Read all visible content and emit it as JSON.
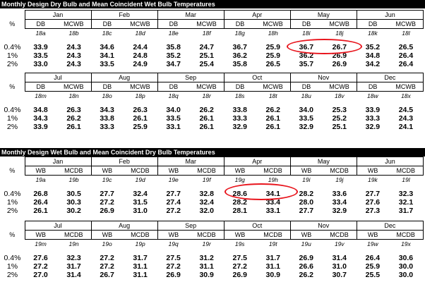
{
  "sections": [
    {
      "title": "Monthly Design Dry Bulb and Mean Coincident Wet Bulb Temperatures",
      "percent_label": "%",
      "col_a": "DB",
      "col_b": "MCWB",
      "halves": [
        {
          "months": [
            "Jan",
            "Feb",
            "Mar",
            "Apr",
            "May",
            "Jun"
          ],
          "codes": [
            "18a",
            "18b",
            "18c",
            "18d",
            "18e",
            "18f",
            "18g",
            "18h",
            "18i",
            "18j",
            "18k",
            "18l"
          ],
          "rows": [
            {
              "pct": "0.4%",
              "v": [
                "33.9",
                "24.3",
                "34.6",
                "24.4",
                "35.8",
                "24.7",
                "36.7",
                "25.9",
                "36.7",
                "26.7",
                "35.2",
                "26.5"
              ]
            },
            {
              "pct": "1%",
              "v": [
                "33.5",
                "24.3",
                "34.1",
                "24.8",
                "35.2",
                "25.1",
                "36.2",
                "25.9",
                "36.2",
                "26.9",
                "34.8",
                "26.4"
              ]
            },
            {
              "pct": "2%",
              "v": [
                "33.0",
                "24.3",
                "33.5",
                "24.9",
                "34.7",
                "25.4",
                "35.8",
                "26.5",
                "35.7",
                "26.9",
                "34.2",
                "26.4"
              ]
            }
          ]
        },
        {
          "months": [
            "Jul",
            "Aug",
            "Sep",
            "Oct",
            "Nov",
            "Dec"
          ],
          "codes": [
            "18m",
            "18n",
            "18o",
            "18p",
            "18q",
            "18r",
            "18s",
            "18t",
            "18u",
            "18v",
            "18w",
            "18x"
          ],
          "rows": [
            {
              "pct": "0.4%",
              "v": [
                "34.8",
                "26.3",
                "34.3",
                "26.3",
                "34.0",
                "26.2",
                "33.8",
                "26.2",
                "34.0",
                "25.3",
                "33.9",
                "24.5"
              ]
            },
            {
              "pct": "1%",
              "v": [
                "34.3",
                "26.2",
                "33.8",
                "26.1",
                "33.5",
                "26.1",
                "33.3",
                "26.1",
                "33.5",
                "25.2",
                "33.3",
                "24.3"
              ]
            },
            {
              "pct": "2%",
              "v": [
                "33.9",
                "26.1",
                "33.3",
                "25.9",
                "33.1",
                "26.1",
                "32.9",
                "26.1",
                "32.9",
                "25.1",
                "32.9",
                "24.1"
              ]
            }
          ]
        }
      ]
    },
    {
      "title": "Monthly Design Wet Bulb and Mean Coincident Dry Bulb Temperatures",
      "percent_label": "%",
      "col_a": "WB",
      "col_b": "MCDB",
      "halves": [
        {
          "months": [
            "Jan",
            "Feb",
            "Mar",
            "Apr",
            "May",
            "Jun"
          ],
          "codes": [
            "19a",
            "19b",
            "19c",
            "19d",
            "19e",
            "19f",
            "19g",
            "19h",
            "19i",
            "19j",
            "19k",
            "19l"
          ],
          "rows": [
            {
              "pct": "0.4%",
              "v": [
                "26.8",
                "30.5",
                "27.7",
                "32.4",
                "27.7",
                "32.8",
                "28.6",
                "34.1",
                "28.2",
                "33.6",
                "27.7",
                "32.3"
              ]
            },
            {
              "pct": "1%",
              "v": [
                "26.4",
                "30.3",
                "27.2",
                "31.5",
                "27.4",
                "32.4",
                "28.2",
                "33.4",
                "28.0",
                "33.4",
                "27.6",
                "32.1"
              ]
            },
            {
              "pct": "2%",
              "v": [
                "26.1",
                "30.2",
                "26.9",
                "31.0",
                "27.2",
                "32.0",
                "28.1",
                "33.1",
                "27.7",
                "32.9",
                "27.3",
                "31.7"
              ]
            }
          ]
        },
        {
          "months": [
            "Jul",
            "Aug",
            "Sep",
            "Oct",
            "Nov",
            "Dec"
          ],
          "codes": [
            "19m",
            "19n",
            "19o",
            "19p",
            "19q",
            "19r",
            "19s",
            "19t",
            "19u",
            "19v",
            "19w",
            "19x"
          ],
          "rows": [
            {
              "pct": "0.4%",
              "v": [
                "27.6",
                "32.3",
                "27.2",
                "31.7",
                "27.5",
                "31.2",
                "27.5",
                "31.7",
                "26.9",
                "31.4",
                "26.4",
                "30.6"
              ]
            },
            {
              "pct": "1%",
              "v": [
                "27.2",
                "31.7",
                "27.2",
                "31.1",
                "27.2",
                "31.1",
                "27.2",
                "31.1",
                "26.6",
                "31.0",
                "25.9",
                "30.0"
              ]
            },
            {
              "pct": "2%",
              "v": [
                "27.0",
                "31.4",
                "26.7",
                "31.1",
                "26.9",
                "30.9",
                "26.9",
                "30.9",
                "26.2",
                "30.7",
                "25.5",
                "30.0"
              ]
            }
          ]
        }
      ]
    }
  ],
  "highlights": [
    {
      "section": 0,
      "half": 0,
      "month": "May",
      "values": [
        "36.7",
        "26.7"
      ],
      "color": "#e8141c"
    },
    {
      "section": 1,
      "half": 0,
      "month": "Apr",
      "values": [
        "28.6",
        "34.1"
      ],
      "color": "#e8141c"
    }
  ]
}
